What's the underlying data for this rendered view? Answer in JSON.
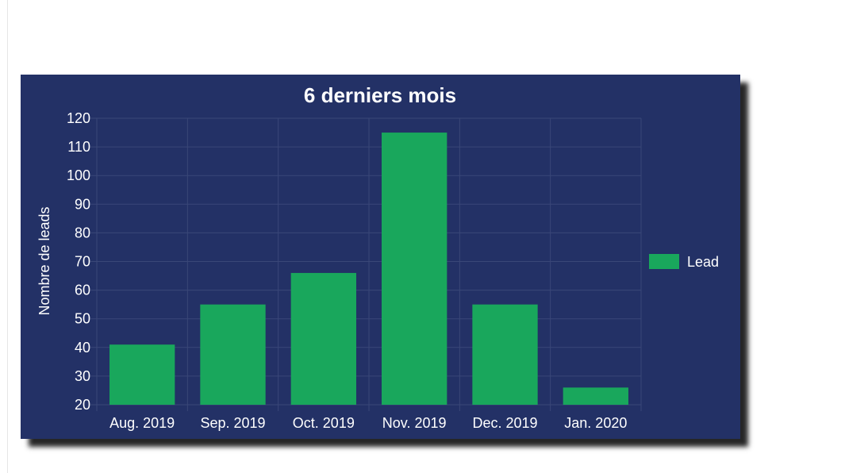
{
  "chart_data": {
    "type": "bar",
    "title": "6 derniers mois",
    "xlabel": "",
    "ylabel": "Nombre de leads",
    "categories": [
      "Aug. 2019",
      "Sep. 2019",
      "Oct. 2019",
      "Nov. 2019",
      "Dec. 2019",
      "Jan. 2020"
    ],
    "series": [
      {
        "name": "Lead",
        "values": [
          41,
          55,
          66,
          115,
          55,
          26
        ],
        "color": "#19a75c"
      }
    ],
    "ylim": [
      20,
      120
    ],
    "yticks": [
      20,
      30,
      40,
      50,
      60,
      70,
      80,
      90,
      100,
      110,
      120
    ],
    "grid": true,
    "legend_position": "right"
  },
  "colors": {
    "background": "#233166",
    "bar": "#19a75c",
    "grid": "#3a4778",
    "text": "#ffffff"
  }
}
